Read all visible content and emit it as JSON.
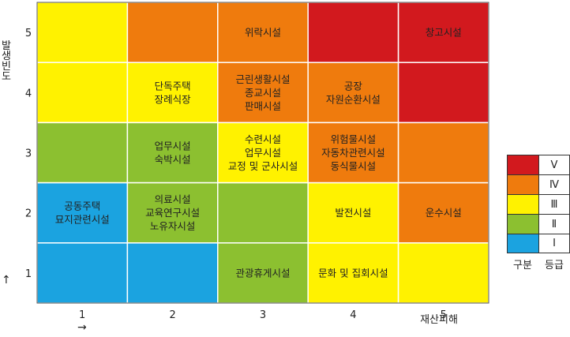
{
  "chart_data": {
    "type": "heatmap",
    "xlabel": "재산피해",
    "ylabel": "발생빈도",
    "x_arrow": "→",
    "y_arrow": "↑",
    "x_ticks": [
      "1",
      "2",
      "3",
      "4",
      "5"
    ],
    "y_ticks": [
      "1",
      "2",
      "3",
      "4",
      "5"
    ],
    "grade_colors": {
      "5": "#D2191E",
      "4": "#EF7B0D",
      "3": "#FFF200",
      "2": "#8CC030",
      "1": "#1BA3E0"
    },
    "cells": [
      {
        "x": 1,
        "y": 5,
        "grade": 3,
        "lines": []
      },
      {
        "x": 2,
        "y": 5,
        "grade": 4,
        "lines": []
      },
      {
        "x": 3,
        "y": 5,
        "grade": 4,
        "lines": [
          "위락시설"
        ]
      },
      {
        "x": 4,
        "y": 5,
        "grade": 5,
        "lines": []
      },
      {
        "x": 5,
        "y": 5,
        "grade": 5,
        "lines": [
          "창고시설"
        ]
      },
      {
        "x": 1,
        "y": 4,
        "grade": 3,
        "lines": []
      },
      {
        "x": 2,
        "y": 4,
        "grade": 3,
        "lines": [
          "단독주택",
          "장례식장"
        ]
      },
      {
        "x": 3,
        "y": 4,
        "grade": 4,
        "lines": [
          "근린생활시설",
          "종교시설",
          "판매시설"
        ]
      },
      {
        "x": 4,
        "y": 4,
        "grade": 4,
        "lines": [
          "공장",
          "자원순환시설"
        ]
      },
      {
        "x": 5,
        "y": 4,
        "grade": 5,
        "lines": []
      },
      {
        "x": 1,
        "y": 3,
        "grade": 2,
        "lines": []
      },
      {
        "x": 2,
        "y": 3,
        "grade": 2,
        "lines": [
          "업무시설",
          "숙박시설"
        ]
      },
      {
        "x": 3,
        "y": 3,
        "grade": 3,
        "lines": [
          "수련시설",
          "업무시설",
          "교정 및 군사시설"
        ]
      },
      {
        "x": 4,
        "y": 3,
        "grade": 4,
        "lines": [
          "위험물시설",
          "자동차관련시설",
          "동식물시설"
        ]
      },
      {
        "x": 5,
        "y": 3,
        "grade": 4,
        "lines": []
      },
      {
        "x": 1,
        "y": 2,
        "grade": 1,
        "lines": [
          "공동주택",
          "묘지관련시설"
        ]
      },
      {
        "x": 2,
        "y": 2,
        "grade": 2,
        "lines": [
          "의료시설",
          "교육연구시설",
          "노유자시설"
        ]
      },
      {
        "x": 3,
        "y": 2,
        "grade": 2,
        "lines": []
      },
      {
        "x": 4,
        "y": 2,
        "grade": 3,
        "lines": [
          "발전시설"
        ]
      },
      {
        "x": 5,
        "y": 2,
        "grade": 4,
        "lines": [
          "운수시설"
        ]
      },
      {
        "x": 1,
        "y": 1,
        "grade": 1,
        "lines": []
      },
      {
        "x": 2,
        "y": 1,
        "grade": 1,
        "lines": []
      },
      {
        "x": 3,
        "y": 1,
        "grade": 2,
        "lines": [
          "관광휴게시설"
        ]
      },
      {
        "x": 4,
        "y": 1,
        "grade": 3,
        "lines": [
          "문화 및 집회시설"
        ]
      },
      {
        "x": 5,
        "y": 1,
        "grade": 3,
        "lines": []
      }
    ],
    "legend": {
      "entries": [
        {
          "grade": 5,
          "label": "Ⅴ"
        },
        {
          "grade": 4,
          "label": "Ⅳ"
        },
        {
          "grade": 3,
          "label": "Ⅲ"
        },
        {
          "grade": 2,
          "label": "Ⅱ"
        },
        {
          "grade": 1,
          "label": "Ⅰ"
        }
      ],
      "header_left": "구분",
      "header_right": "등급"
    }
  }
}
